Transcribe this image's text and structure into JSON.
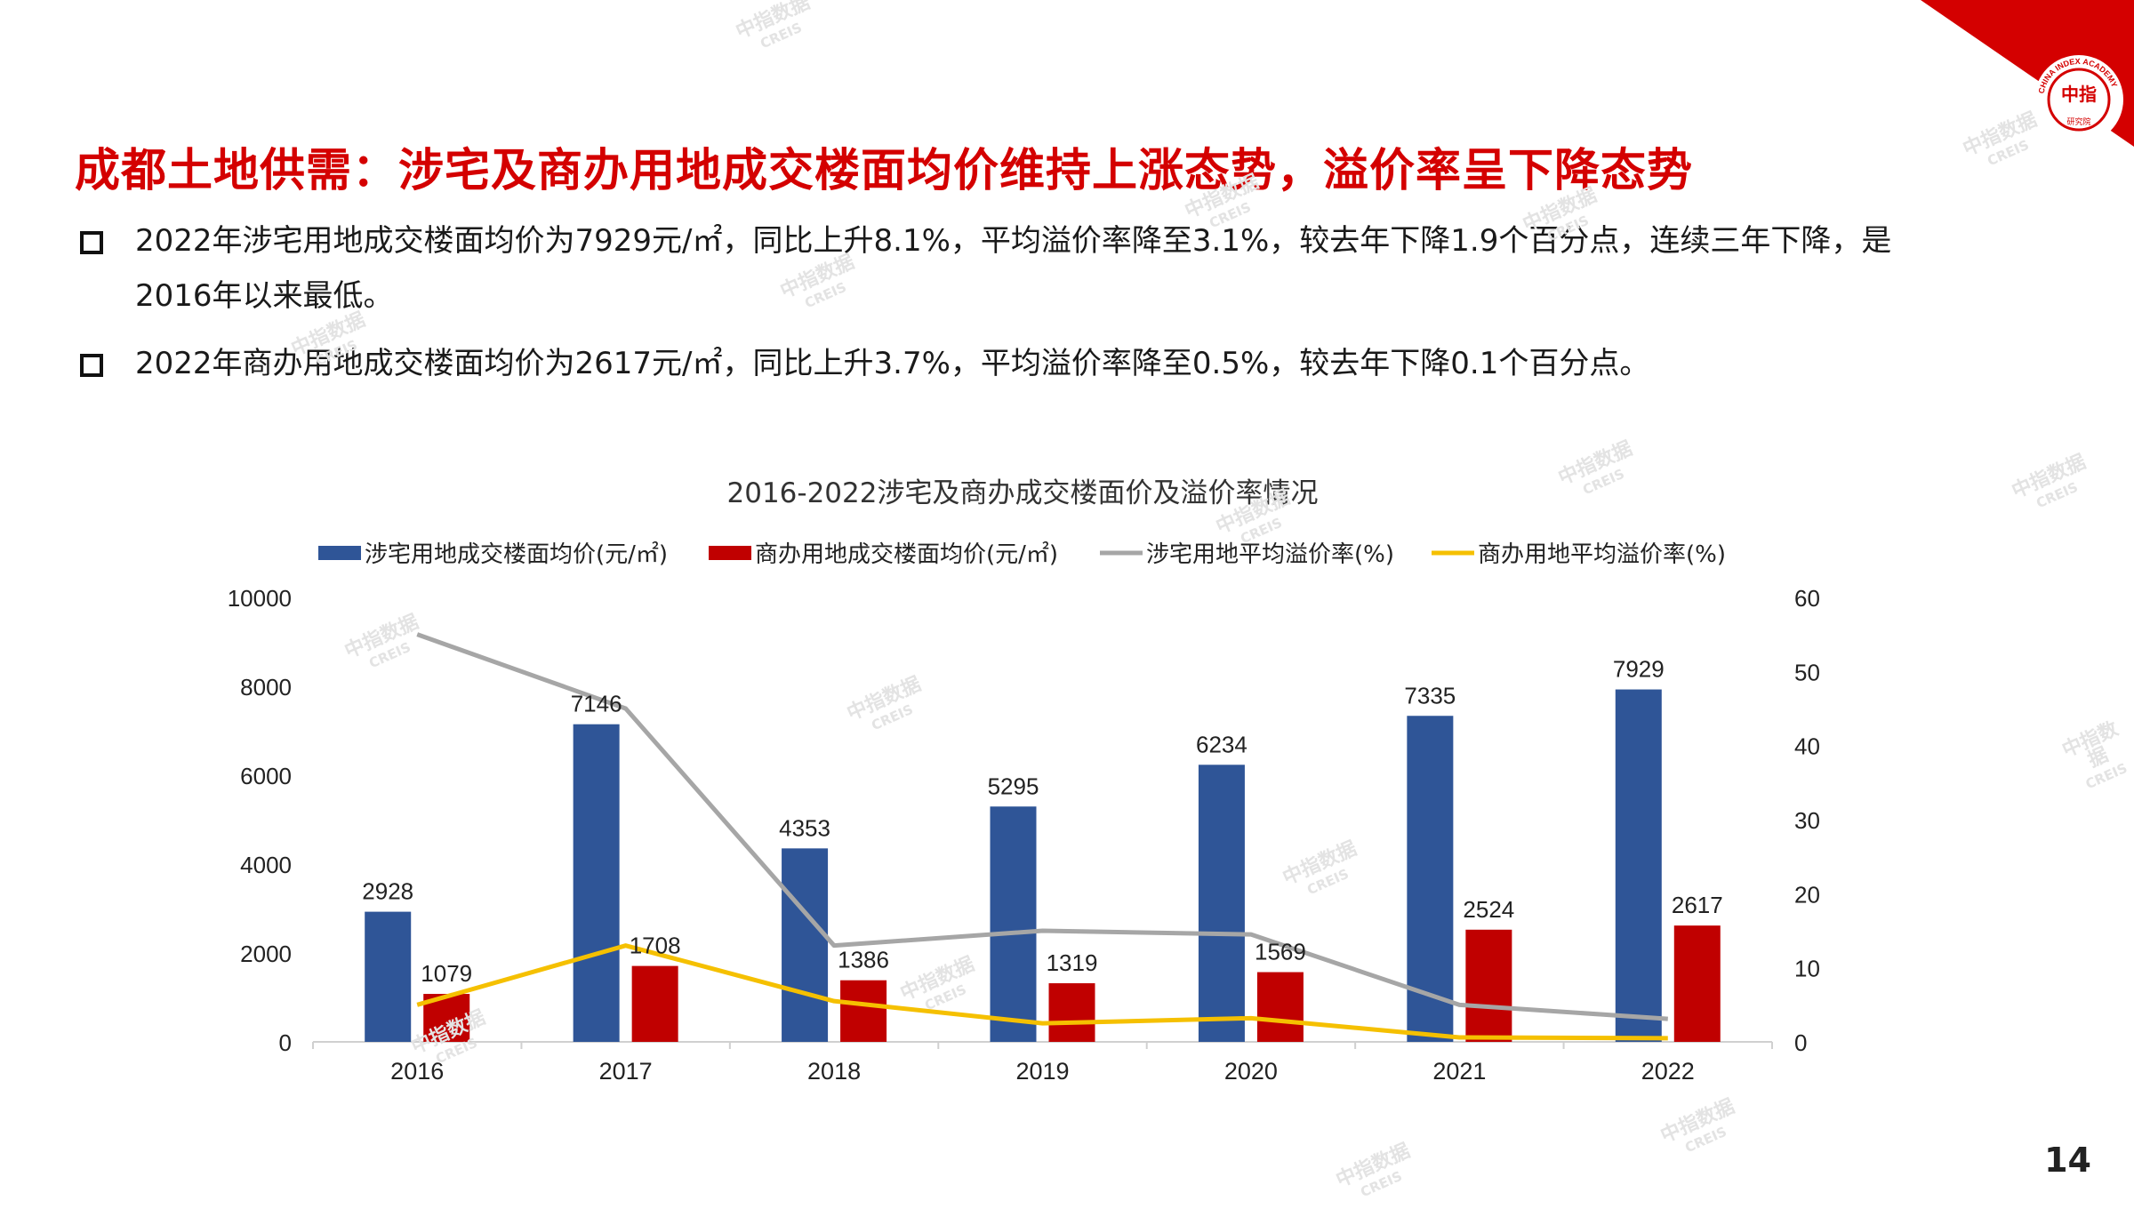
{
  "header": {
    "title": "成都土地供需：涉宅及商办用地成交楼面均价维持上涨态势，溢价率呈下降态势",
    "logo_text": "中指",
    "logo_ring_text": "CHINA INDEX ACADEMY",
    "logo_sub_text": "研究院"
  },
  "bullets": [
    "2022年涉宅用地成交楼面均价为7929元/㎡，同比上升8.1%，平均溢价率降至3.1%，较去年下降1.9个百分点，连续三年下降，是2016年以来最低。",
    "2022年商办用地成交楼面均价为2617元/㎡，同比上升3.7%，平均溢价率降至0.5%，较去年下降0.1个百分点。"
  ],
  "watermark": {
    "line1": "中指数据",
    "line2": "CREIS"
  },
  "page_number": "14",
  "colors": {
    "title_red": "#d40000",
    "bar_residential": "#2f5597",
    "bar_commercial": "#c00000",
    "line_residential": "#a6a6a6",
    "line_commercial": "#f5c000"
  },
  "chart_data": {
    "type": "bar",
    "title": "2016-2022涉宅及商办成交楼面价及溢价率情况",
    "categories": [
      "2016",
      "2017",
      "2018",
      "2019",
      "2020",
      "2021",
      "2022"
    ],
    "series": [
      {
        "name": "涉宅用地成交楼面均价(元/㎡)",
        "type": "bar",
        "axis": "left",
        "values": [
          2928,
          7146,
          4353,
          5295,
          6234,
          7335,
          7929
        ]
      },
      {
        "name": "商办用地成交楼面均价(元/㎡)",
        "type": "bar",
        "axis": "left",
        "values": [
          1079,
          1708,
          1386,
          1319,
          1569,
          2524,
          2617
        ]
      },
      {
        "name": "涉宅用地平均溢价率(%)",
        "type": "line",
        "axis": "right",
        "values": [
          55,
          45,
          13,
          15,
          14.5,
          5,
          3.1
        ]
      },
      {
        "name": "商办用地平均溢价率(%)",
        "type": "line",
        "axis": "right",
        "values": [
          5,
          13,
          5.5,
          2.5,
          3.2,
          0.6,
          0.5
        ]
      }
    ],
    "y_left": {
      "min": 0,
      "max": 10000,
      "ticks": [
        "0",
        "2000",
        "4000",
        "6000",
        "8000",
        "10000"
      ]
    },
    "y_right": {
      "min": 0,
      "max": 60,
      "ticks": [
        "0",
        "10",
        "20",
        "30",
        "40",
        "50",
        "60"
      ]
    },
    "legend_position": "top",
    "grid": false
  }
}
